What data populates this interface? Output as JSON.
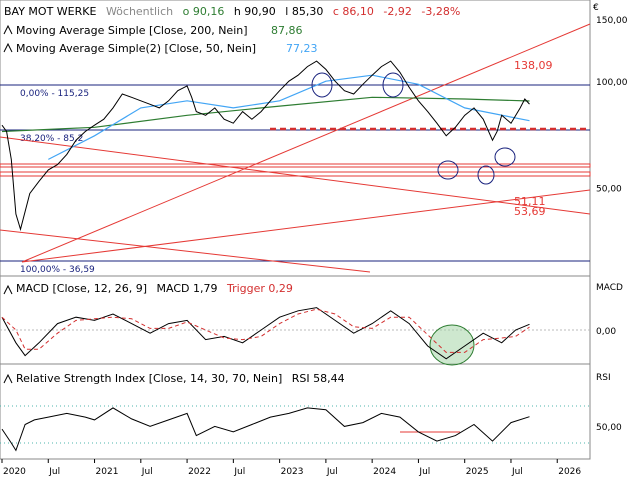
{
  "title": {
    "symbol": "BAY MOT WERKE",
    "period": "Wöchentlich",
    "o": "o 90,16",
    "h": "h 90,90",
    "l": "l 85,30",
    "c": "c 86,10",
    "chg": "-2,92",
    "pct": "-3,28%"
  },
  "currency": "€",
  "legend_ma1": "Moving Average Simple [Close, 200, Nein]",
  "legend_ma1_val": "87,86",
  "legend_ma2": "Moving Average Simple(2) [Close, 50, Nein]",
  "legend_ma2_val": "77,23",
  "fib_0": "0,00% - 115,25",
  "fib_38": "38,20% - 85,2",
  "fib_100": "100,00% - 36,59",
  "target_top": "138,09",
  "target_a": "51,11",
  "target_b": "53,69",
  "macd_panel": {
    "label": "MACD",
    "legend": "MACD [Close, 12, 26, 9]",
    "value": "MACD 1,79",
    "trigger": "Trigger 0,29",
    "tick": "0,00"
  },
  "rsi_panel": {
    "label": "RSI",
    "legend": "Relative Strength Index [Close, 14, 30, 70, Nein]",
    "value": "RSI 58,44",
    "tick": "50,00"
  },
  "colors": {
    "price": "#000000",
    "ma200": "#2e7d32",
    "ma50": "#42a5f5",
    "fib": "#1a237e",
    "trend": "#e53935",
    "dash": "#d32f2f",
    "circle": "#9fa8da",
    "green_circle": "#a5d6a7"
  },
  "chart_data": {
    "type": "ohlc",
    "title": "BAY MOT WERKE Wöchentlich",
    "x_ticks": [
      "2020",
      "Jul",
      "2021",
      "Jul",
      "2022",
      "Jul",
      "2023",
      "Jul",
      "2024",
      "Jul",
      "2025",
      "Jul",
      "2026"
    ],
    "y_ticks": [
      "150,00",
      "100,00",
      "50,00"
    ],
    "y_log": true,
    "ylim": [
      28,
      170
    ],
    "price_series": {
      "name": "Close",
      "points": [
        [
          2020.0,
          75
        ],
        [
          2020.05,
          72
        ],
        [
          2020.1,
          60
        ],
        [
          2020.15,
          42
        ],
        [
          2020.2,
          38
        ],
        [
          2020.3,
          48
        ],
        [
          2020.4,
          52
        ],
        [
          2020.5,
          56
        ],
        [
          2020.6,
          58
        ],
        [
          2020.7,
          62
        ],
        [
          2020.8,
          68
        ],
        [
          2020.9,
          72
        ],
        [
          2021.0,
          75
        ],
        [
          2021.1,
          78
        ],
        [
          2021.2,
          84
        ],
        [
          2021.3,
          92
        ],
        [
          2021.4,
          90
        ],
        [
          2021.5,
          88
        ],
        [
          2021.6,
          86
        ],
        [
          2021.7,
          84
        ],
        [
          2021.8,
          88
        ],
        [
          2021.9,
          94
        ],
        [
          2022.0,
          97
        ],
        [
          2022.05,
          90
        ],
        [
          2022.1,
          82
        ],
        [
          2022.2,
          80
        ],
        [
          2022.3,
          84
        ],
        [
          2022.4,
          78
        ],
        [
          2022.5,
          76
        ],
        [
          2022.6,
          82
        ],
        [
          2022.7,
          78
        ],
        [
          2022.8,
          82
        ],
        [
          2022.9,
          88
        ],
        [
          2023.0,
          94
        ],
        [
          2023.1,
          100
        ],
        [
          2023.2,
          104
        ],
        [
          2023.3,
          110
        ],
        [
          2023.4,
          114
        ],
        [
          2023.5,
          108
        ],
        [
          2023.6,
          100
        ],
        [
          2023.7,
          94
        ],
        [
          2023.8,
          92
        ],
        [
          2023.9,
          98
        ],
        [
          2024.0,
          104
        ],
        [
          2024.1,
          110
        ],
        [
          2024.2,
          114
        ],
        [
          2024.3,
          106
        ],
        [
          2024.4,
          96
        ],
        [
          2024.5,
          88
        ],
        [
          2024.6,
          82
        ],
        [
          2024.7,
          76
        ],
        [
          2024.8,
          70
        ],
        [
          2024.9,
          74
        ],
        [
          2025.0,
          80
        ],
        [
          2025.1,
          84
        ],
        [
          2025.2,
          78
        ],
        [
          2025.3,
          68
        ],
        [
          2025.35,
          72
        ],
        [
          2025.4,
          80
        ],
        [
          2025.5,
          76
        ],
        [
          2025.6,
          84
        ],
        [
          2025.65,
          89
        ],
        [
          2025.7,
          86.1
        ]
      ]
    },
    "ma200": {
      "name": "Moving Average Simple [Close, 200, Nein]",
      "value": 87.86,
      "points": [
        [
          2020.0,
          72
        ],
        [
          2021.0,
          74
        ],
        [
          2022.0,
          80
        ],
        [
          2023.0,
          85
        ],
        [
          2024.0,
          90
        ],
        [
          2025.0,
          89
        ],
        [
          2025.7,
          87.86
        ]
      ]
    },
    "ma50": {
      "name": "Moving Average Simple(2) [Close, 50, Nein]",
      "value": 77.23,
      "points": [
        [
          2020.5,
          60
        ],
        [
          2021.0,
          70
        ],
        [
          2021.5,
          84
        ],
        [
          2022.0,
          88
        ],
        [
          2022.5,
          84
        ],
        [
          2023.0,
          88
        ],
        [
          2023.5,
          100
        ],
        [
          2024.0,
          104
        ],
        [
          2024.5,
          98
        ],
        [
          2025.0,
          84
        ],
        [
          2025.7,
          77.23
        ]
      ]
    },
    "fibonacci": [
      {
        "label": "0,00% - 115,25",
        "value": 115.25
      },
      {
        "label": "38,20% - 85,2",
        "value": 85.2
      },
      {
        "label": "100,00% - 36,59",
        "value": 36.59
      }
    ],
    "targets": [
      {
        "label": "138,09",
        "value": 138.09
      },
      {
        "label": "51,11",
        "value": 51.11
      },
      {
        "label": "53,69",
        "value": 53.69
      }
    ],
    "macd": {
      "legend": "MACD [Close, 12, 26, 9]",
      "value": 1.79,
      "trigger": 0.29,
      "points": [
        [
          2020.0,
          4
        ],
        [
          2020.15,
          -4
        ],
        [
          2020.25,
          -8
        ],
        [
          2020.4,
          -4
        ],
        [
          2020.6,
          2
        ],
        [
          2020.8,
          4
        ],
        [
          2021.0,
          3
        ],
        [
          2021.2,
          5
        ],
        [
          2021.4,
          2
        ],
        [
          2021.6,
          -1
        ],
        [
          2021.8,
          2
        ],
        [
          2022.0,
          3
        ],
        [
          2022.2,
          -3
        ],
        [
          2022.4,
          -2
        ],
        [
          2022.6,
          -4
        ],
        [
          2022.8,
          0
        ],
        [
          2023.0,
          4
        ],
        [
          2023.2,
          6
        ],
        [
          2023.4,
          7
        ],
        [
          2023.6,
          3
        ],
        [
          2023.8,
          -1
        ],
        [
          2024.0,
          2
        ],
        [
          2024.2,
          6
        ],
        [
          2024.4,
          2
        ],
        [
          2024.6,
          -5
        ],
        [
          2024.8,
          -9
        ],
        [
          2025.0,
          -5
        ],
        [
          2025.2,
          -1
        ],
        [
          2025.4,
          -4
        ],
        [
          2025.55,
          0
        ],
        [
          2025.7,
          1.79
        ]
      ]
    },
    "rsi": {
      "legend": "Relative Strength Index [Close, 14, 30, 70, Nein]",
      "value": 58.44,
      "levels": [
        30,
        70
      ],
      "points": [
        [
          2020.0,
          45
        ],
        [
          2020.1,
          30
        ],
        [
          2020.15,
          22
        ],
        [
          2020.25,
          50
        ],
        [
          2020.35,
          55
        ],
        [
          2020.5,
          58
        ],
        [
          2020.7,
          62
        ],
        [
          2020.9,
          58
        ],
        [
          2021.0,
          55
        ],
        [
          2021.2,
          68
        ],
        [
          2021.4,
          56
        ],
        [
          2021.6,
          48
        ],
        [
          2021.8,
          55
        ],
        [
          2022.0,
          62
        ],
        [
          2022.1,
          38
        ],
        [
          2022.3,
          48
        ],
        [
          2022.5,
          42
        ],
        [
          2022.7,
          50
        ],
        [
          2022.9,
          58
        ],
        [
          2023.1,
          62
        ],
        [
          2023.3,
          68
        ],
        [
          2023.5,
          66
        ],
        [
          2023.7,
          48
        ],
        [
          2023.9,
          52
        ],
        [
          2024.1,
          62
        ],
        [
          2024.3,
          58
        ],
        [
          2024.5,
          42
        ],
        [
          2024.7,
          32
        ],
        [
          2024.9,
          38
        ],
        [
          2025.1,
          50
        ],
        [
          2025.3,
          32
        ],
        [
          2025.5,
          52
        ],
        [
          2025.7,
          58.44
        ]
      ]
    }
  }
}
